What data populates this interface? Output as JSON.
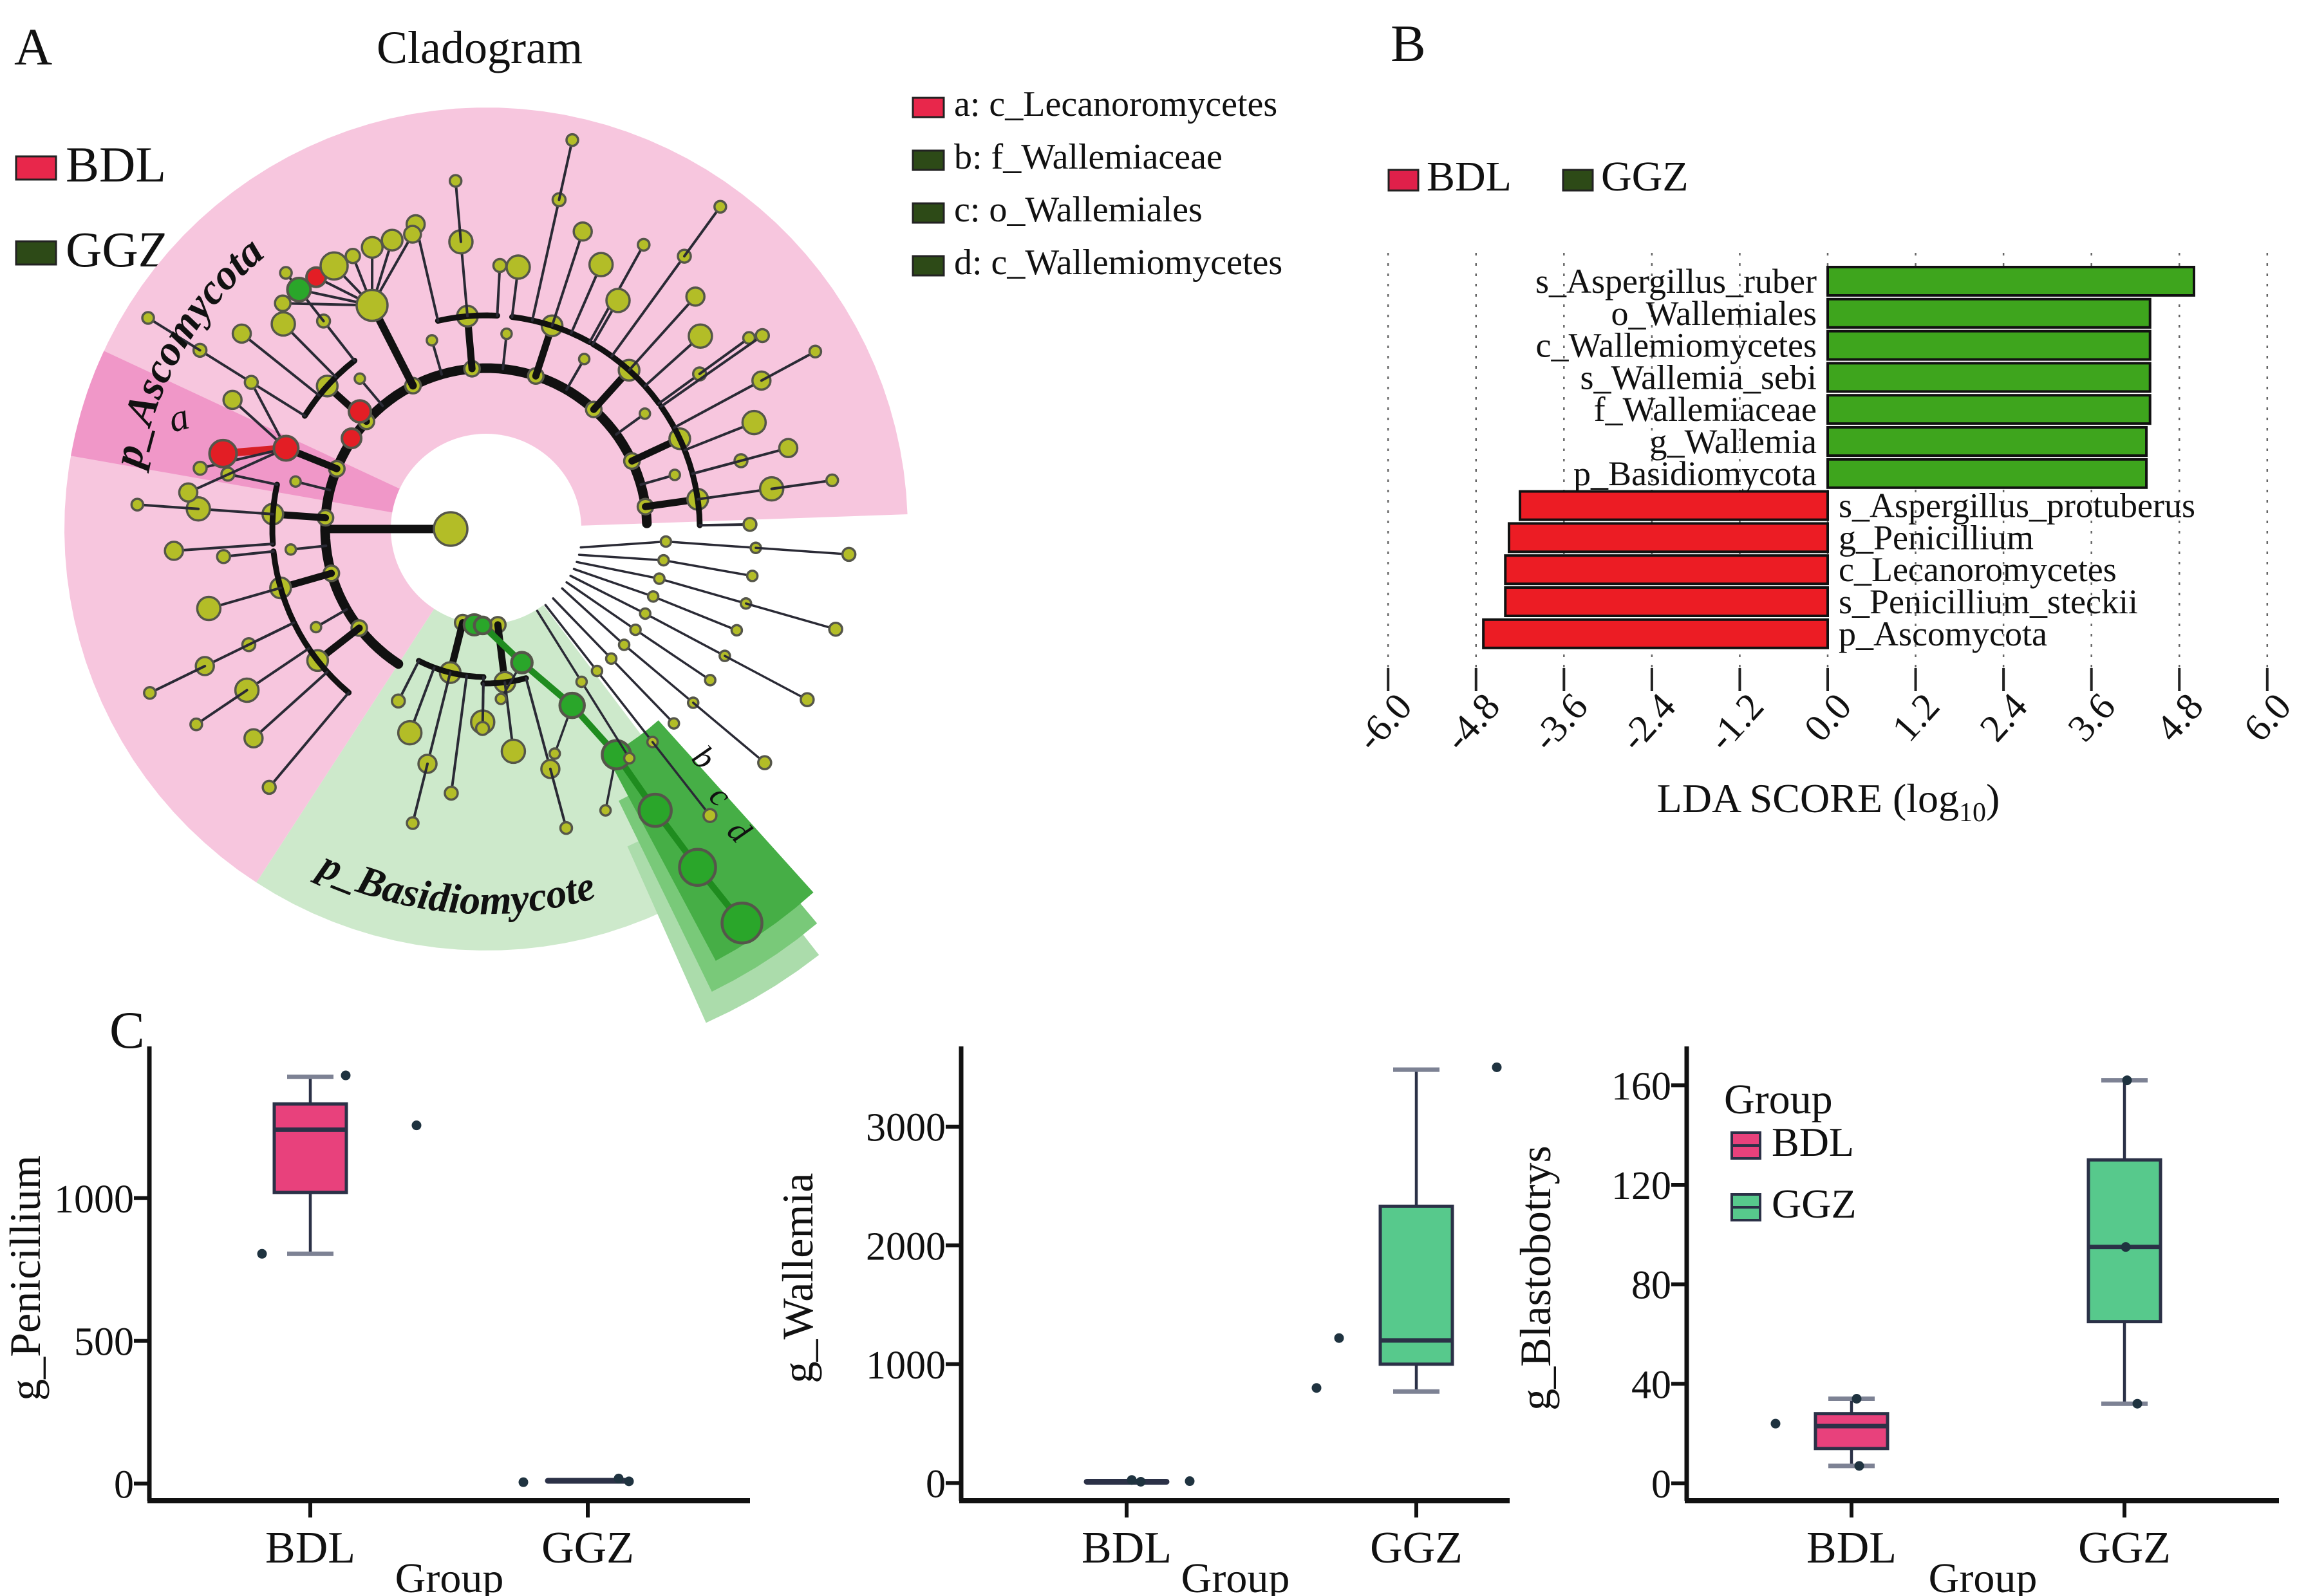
{
  "panel_a": {
    "label": "A",
    "title": "Cladogram",
    "legend": [
      {
        "label": "BDL",
        "color": "#e8274b"
      },
      {
        "label": "GGZ",
        "color": "#2d4a17"
      }
    ],
    "key": [
      {
        "label": "a: c_Lecanoromycetes",
        "color": "#e8274b"
      },
      {
        "label": "b: f_Wallemiaceae",
        "color": "#2d4a17"
      },
      {
        "label": "c: o_Wallemiales",
        "color": "#2d4a17"
      },
      {
        "label": "d: c_Wallemiomycetes",
        "color": "#2d4a17"
      }
    ],
    "ring_labels": {
      "ascomycota": "p_Ascomycota",
      "basidiomycota": "p_Basidiomycote",
      "a": "a",
      "b": "b",
      "c": "c",
      "d": "d"
    },
    "colors": {
      "sector_pink": "#f7c6de",
      "sector_pink_dark": "#f097c8",
      "sector_green": "#cde9cb",
      "wedge_b": "#46ae46",
      "wedge_c": "#79c979",
      "wedge_d": "#abdcab",
      "node": "#b3bd27",
      "node_red": "#e31e25",
      "node_green": "#2aa62a",
      "branch": "#2a2a35",
      "trunk": "#111111"
    }
  },
  "panel_b": {
    "label": "B",
    "legend": [
      {
        "label": "BDL",
        "color": "#e0204a"
      },
      {
        "label": "GGZ",
        "color": "#2d4a17"
      }
    ]
  },
  "panel_c": {
    "label": "C"
  },
  "chart_data": [
    {
      "type": "bar",
      "panel": "B",
      "orientation": "horizontal",
      "xlabel_parts": [
        "LDA SCORE (log",
        "10",
        ")"
      ],
      "xlim": [
        -6,
        6
      ],
      "xticks": [
        -6,
        -4.8,
        -3.6,
        -2.4,
        -1.2,
        0,
        1.2,
        2.4,
        3.6,
        4.8,
        6
      ],
      "grid": "dashed-vertical",
      "bar_colors": {
        "GGZ": "#3ea51d",
        "BDL": "#ec1c24"
      },
      "bars": [
        {
          "taxon": "s_Aspergillus_ruber",
          "group": "GGZ",
          "lda": 5.0
        },
        {
          "taxon": "o_Wallemiales",
          "group": "GGZ",
          "lda": 4.4
        },
        {
          "taxon": "c_Wallemiomycetes",
          "group": "GGZ",
          "lda": 4.4
        },
        {
          "taxon": "s_Wallemia_sebi",
          "group": "GGZ",
          "lda": 4.4
        },
        {
          "taxon": "f_Wallemiaceae",
          "group": "GGZ",
          "lda": 4.4
        },
        {
          "taxon": "g_Wallemia",
          "group": "GGZ",
          "lda": 4.35
        },
        {
          "taxon": "p_Basidiomycota",
          "group": "GGZ",
          "lda": 4.35
        },
        {
          "taxon": "s_Aspergillus_protuberus",
          "group": "BDL",
          "lda": -4.2
        },
        {
          "taxon": "g_Penicillium",
          "group": "BDL",
          "lda": -4.35
        },
        {
          "taxon": "c_Lecanoromycetes",
          "group": "BDL",
          "lda": -4.4
        },
        {
          "taxon": "s_Penicillium_steckii",
          "group": "BDL",
          "lda": -4.4
        },
        {
          "taxon": "p_Ascomycota",
          "group": "BDL",
          "lda": -4.7
        }
      ]
    },
    {
      "type": "box",
      "panel": "C1",
      "ylabel": "g_Penicillium",
      "xlabel": "Group",
      "categories": [
        "BDL",
        "GGZ"
      ],
      "ylim": [
        -60,
        1500
      ],
      "yticks": [
        0,
        500,
        1000
      ],
      "boxes": [
        {
          "category": "BDL",
          "color": "#e8417c",
          "whisker_low": 805,
          "q1": 1020,
          "median": 1240,
          "q3": 1330,
          "whisker_high": 1425,
          "points": [
            [
              -75,
              805
            ],
            [
              55,
              1430
            ],
            [
              165,
              1255
            ]
          ]
        },
        {
          "category": "GGZ",
          "color": "#57c98c",
          "flat_value": 10,
          "points": [
            [
              -100,
              5
            ],
            [
              48,
              18
            ],
            [
              64,
              8
            ]
          ]
        }
      ]
    },
    {
      "type": "box",
      "panel": "C2",
      "ylabel": "g_Wallemia",
      "xlabel": "Group",
      "categories": [
        "BDL",
        "GGZ"
      ],
      "ylim": [
        -150,
        3600
      ],
      "yticks": [
        0,
        1000,
        2000,
        3000
      ],
      "boxes": [
        {
          "category": "BDL",
          "color": "#e8417c",
          "flat_value": 10,
          "points": [
            [
              8,
              25
            ],
            [
              22,
              10
            ],
            [
              98,
              15
            ]
          ]
        },
        {
          "category": "GGZ",
          "color": "#57c98c",
          "whisker_low": 770,
          "q1": 1000,
          "median": 1200,
          "q3": 2330,
          "whisker_high": 3480,
          "points": [
            [
              -120,
              1220
            ],
            [
              -155,
              800
            ],
            [
              125,
              3500
            ]
          ]
        }
      ]
    },
    {
      "type": "box",
      "panel": "C3",
      "ylabel": "g_Blastobotrys",
      "xlabel": "Group",
      "categories": [
        "BDL",
        "GGZ"
      ],
      "ylim": [
        -7,
        172
      ],
      "yticks": [
        0,
        40,
        80,
        120,
        160
      ],
      "legend": {
        "title": "Group",
        "entries": [
          {
            "label": "BDL",
            "color": "#e8417c"
          },
          {
            "label": "GGZ",
            "color": "#57c98c"
          }
        ]
      },
      "boxes": [
        {
          "category": "BDL",
          "color": "#e8417c",
          "whisker_low": 7,
          "q1": 14,
          "median": 23,
          "q3": 28,
          "whisker_high": 34,
          "points": [
            [
              -118,
              24
            ],
            [
              8,
              34
            ],
            [
              12,
              7
            ]
          ]
        },
        {
          "category": "GGZ",
          "color": "#57c98c",
          "whisker_low": 32,
          "q1": 65,
          "median": 95,
          "q3": 130,
          "whisker_high": 162,
          "points": [
            [
              4,
              162
            ],
            [
              20,
              32
            ],
            [
              2,
              95
            ]
          ]
        }
      ]
    }
  ]
}
